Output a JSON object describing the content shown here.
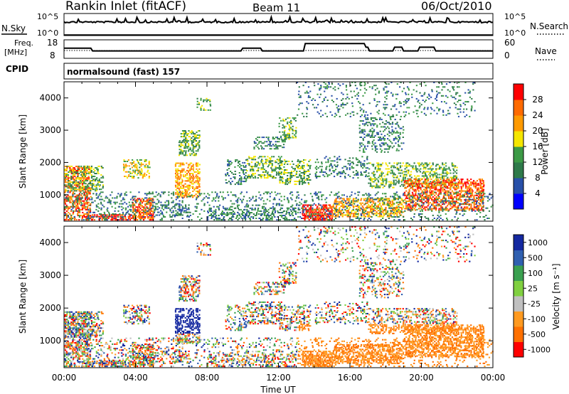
{
  "header": {
    "title": "Rankin Inlet (fitACF)",
    "beam": "Beam 11",
    "date": "06/Oct/2010"
  },
  "nsky_panel": {
    "left_label": "N.Sky",
    "right_label": "N.Search",
    "left_ticks": [
      "10^5",
      "10^0"
    ],
    "right_ticks": [
      "10^5",
      "10^0"
    ]
  },
  "freq_panel": {
    "left_label_1": "Freq.",
    "left_label_2": "[MHz]",
    "right_label": "Nave",
    "left_ticks": [
      "18",
      "8"
    ],
    "right_ticks": [
      "60",
      "0"
    ]
  },
  "cpid": {
    "label": "CPID",
    "mode": "normalsound (fast) 157"
  },
  "colors": {
    "power": [
      "#0000ff",
      "#2850a8",
      "#2e7a4a",
      "#3c9a46",
      "#f5e600",
      "#ff9a00",
      "#ff6a00",
      "#ff0000"
    ],
    "velocity": [
      "#ff0000",
      "#ff7000",
      "#ff9a20",
      "#c0c0c0",
      "#80d040",
      "#3aa050",
      "#3060b0",
      "#1428a0"
    ]
  },
  "chart_data": [
    {
      "type": "heatmap",
      "name": "power",
      "ylabel": "Slant Range [km]",
      "yticks": [
        "1000",
        "2000",
        "3000",
        "4000"
      ],
      "ylim": [
        180,
        4500
      ],
      "xlim": [
        0,
        24
      ],
      "colorbar_label": "Power [dB]",
      "colorbar_ticks": [
        "4",
        "8",
        "12",
        "16",
        "20",
        "24",
        "28"
      ],
      "colorbar_range": [
        0,
        32
      ]
    },
    {
      "type": "heatmap",
      "name": "velocity",
      "ylabel": "Slant Range [km]",
      "yticks": [
        "1000",
        "2000",
        "3000",
        "4000"
      ],
      "ylim": [
        180,
        4500
      ],
      "xlim": [
        0,
        24
      ],
      "colorbar_label": "Velocity [m s⁻¹]",
      "colorbar_ticks": [
        "-1000",
        "-500",
        "-100",
        "-25",
        "25",
        "100",
        "500",
        "1000"
      ],
      "xticks": [
        "00:00",
        "04:00",
        "08:00",
        "12:00",
        "16:00",
        "20:00",
        "00:00"
      ],
      "xlabel": "Time UT"
    }
  ]
}
